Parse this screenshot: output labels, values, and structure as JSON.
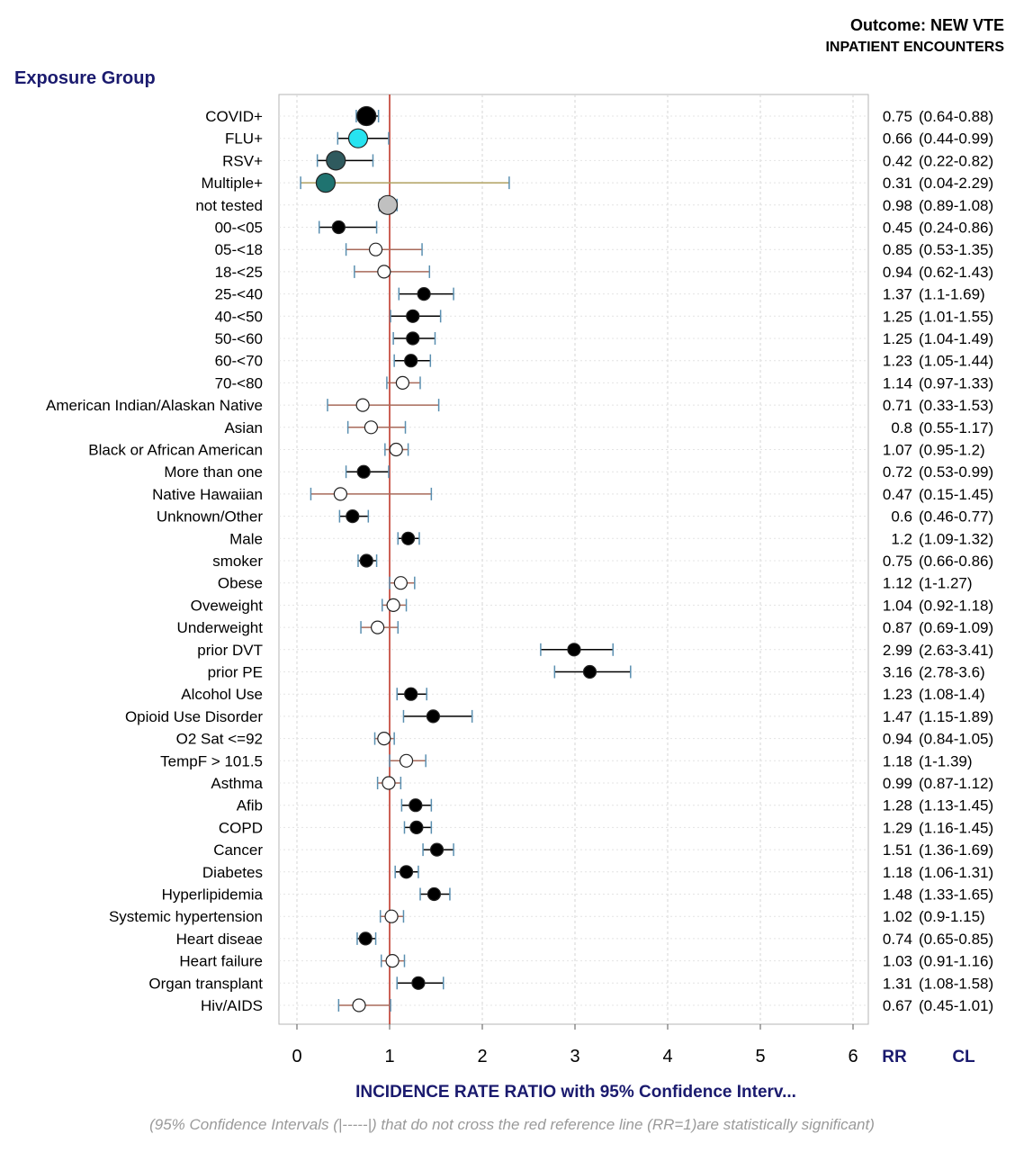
{
  "header": {
    "outcome": "Outcome: NEW VTE",
    "encounters": "INPATIENT ENCOUNTERS",
    "group_title": "Exposure Group"
  },
  "footnote": "(95% Confidence Intervals (|-----|) that do not cross the red reference line (RR=1)are statistically significant)",
  "chart_data": {
    "type": "scatter",
    "title": "",
    "xlabel": "INCIDENCE RATE RATIO with 95% Confidence Interv...",
    "ylabel": "Exposure Group",
    "xlim": [
      -0.2,
      6.3
    ],
    "xticks": [
      0,
      1,
      2,
      3,
      4,
      5,
      6
    ],
    "reference_line": 1,
    "grid": true,
    "colors": {
      "reference": "#c0392b",
      "significant": "#000000",
      "not_significant": "#ffffff",
      "flu": "#27e3f0",
      "rsv": "#2f5a5e",
      "multiple": "#1f7370",
      "not_tested": "#c0c0c0",
      "ci_significant": "#000000",
      "ci_not_significant": "#a86a5a",
      "ci_multiple": "#b0a060",
      "header_blue": "#1a1a6e"
    },
    "col_headers": {
      "rr": "RR",
      "cl": "CL"
    },
    "rows": [
      {
        "label": "COVID+",
        "rr": 0.75,
        "lo": 0.64,
        "hi": 0.88,
        "rr_text": "0.75",
        "ci_text": "(0.64-0.88)",
        "fill": "#000000",
        "size": "large"
      },
      {
        "label": "FLU+",
        "rr": 0.66,
        "lo": 0.44,
        "hi": 0.99,
        "rr_text": "0.66",
        "ci_text": "(0.44-0.99)",
        "fill": "#27e3f0",
        "size": "large"
      },
      {
        "label": "RSV+",
        "rr": 0.42,
        "lo": 0.22,
        "hi": 0.82,
        "rr_text": "0.42",
        "ci_text": "(0.22-0.82)",
        "fill": "#2f5a5e",
        "size": "large"
      },
      {
        "label": "Multiple+",
        "rr": 0.31,
        "lo": 0.04,
        "hi": 2.29,
        "rr_text": "0.31",
        "ci_text": "(0.04-2.29)",
        "fill": "#1f7370",
        "size": "large"
      },
      {
        "label": "not tested",
        "rr": 0.98,
        "lo": 0.89,
        "hi": 1.08,
        "rr_text": "0.98",
        "ci_text": "(0.89-1.08)",
        "fill": "#c0c0c0",
        "size": "large"
      },
      {
        "label": "00-<05",
        "rr": 0.45,
        "lo": 0.24,
        "hi": 0.86,
        "rr_text": "0.45",
        "ci_text": "(0.24-0.86)",
        "sig": true
      },
      {
        "label": "05-<18",
        "rr": 0.85,
        "lo": 0.53,
        "hi": 1.35,
        "rr_text": "0.85",
        "ci_text": "(0.53-1.35)",
        "sig": false
      },
      {
        "label": "18-<25",
        "rr": 0.94,
        "lo": 0.62,
        "hi": 1.43,
        "rr_text": "0.94",
        "ci_text": "(0.62-1.43)",
        "sig": false
      },
      {
        "label": "25-<40",
        "rr": 1.37,
        "lo": 1.1,
        "hi": 1.69,
        "rr_text": "1.37",
        "ci_text": "(1.1-1.69)",
        "sig": true
      },
      {
        "label": "40-<50",
        "rr": 1.25,
        "lo": 1.01,
        "hi": 1.55,
        "rr_text": "1.25",
        "ci_text": "(1.01-1.55)",
        "sig": true
      },
      {
        "label": "50-<60",
        "rr": 1.25,
        "lo": 1.04,
        "hi": 1.49,
        "rr_text": "1.25",
        "ci_text": "(1.04-1.49)",
        "sig": true
      },
      {
        "label": "60-<70",
        "rr": 1.23,
        "lo": 1.05,
        "hi": 1.44,
        "rr_text": "1.23",
        "ci_text": "(1.05-1.44)",
        "sig": true
      },
      {
        "label": "70-<80",
        "rr": 1.14,
        "lo": 0.97,
        "hi": 1.33,
        "rr_text": "1.14",
        "ci_text": "(0.97-1.33)",
        "sig": false
      },
      {
        "label": "American Indian/Alaskan Native",
        "rr": 0.71,
        "lo": 0.33,
        "hi": 1.53,
        "rr_text": "0.71",
        "ci_text": "(0.33-1.53)",
        "sig": false
      },
      {
        "label": "Asian",
        "rr": 0.8,
        "lo": 0.55,
        "hi": 1.17,
        "rr_text": "0.8",
        "ci_text": "(0.55-1.17)",
        "sig": false
      },
      {
        "label": "Black or African American",
        "rr": 1.07,
        "lo": 0.95,
        "hi": 1.2,
        "rr_text": "1.07",
        "ci_text": "(0.95-1.2)",
        "sig": false
      },
      {
        "label": "More than one",
        "rr": 0.72,
        "lo": 0.53,
        "hi": 0.99,
        "rr_text": "0.72",
        "ci_text": "(0.53-0.99)",
        "sig": true
      },
      {
        "label": "Native Hawaiian",
        "rr": 0.47,
        "lo": 0.15,
        "hi": 1.45,
        "rr_text": "0.47",
        "ci_text": "(0.15-1.45)",
        "sig": false
      },
      {
        "label": "Unknown/Other",
        "rr": 0.6,
        "lo": 0.46,
        "hi": 0.77,
        "rr_text": "0.6",
        "ci_text": "(0.46-0.77)",
        "sig": true
      },
      {
        "label": "Male",
        "rr": 1.2,
        "lo": 1.09,
        "hi": 1.32,
        "rr_text": "1.2",
        "ci_text": "(1.09-1.32)",
        "sig": true
      },
      {
        "label": "smoker",
        "rr": 0.75,
        "lo": 0.66,
        "hi": 0.86,
        "rr_text": "0.75",
        "ci_text": "(0.66-0.86)",
        "sig": true
      },
      {
        "label": "Obese",
        "rr": 1.12,
        "lo": 1.0,
        "hi": 1.27,
        "rr_text": "1.12",
        "ci_text": "(1-1.27)",
        "sig": false
      },
      {
        "label": "Oveweight",
        "rr": 1.04,
        "lo": 0.92,
        "hi": 1.18,
        "rr_text": "1.04",
        "ci_text": "(0.92-1.18)",
        "sig": false
      },
      {
        "label": "Underweight",
        "rr": 0.87,
        "lo": 0.69,
        "hi": 1.09,
        "rr_text": "0.87",
        "ci_text": "(0.69-1.09)",
        "sig": false
      },
      {
        "label": "prior DVT",
        "rr": 2.99,
        "lo": 2.63,
        "hi": 3.41,
        "rr_text": "2.99",
        "ci_text": "(2.63-3.41)",
        "sig": true
      },
      {
        "label": "prior PE",
        "rr": 3.16,
        "lo": 2.78,
        "hi": 3.6,
        "rr_text": "3.16",
        "ci_text": "(2.78-3.6)",
        "sig": true
      },
      {
        "label": "Alcohol Use",
        "rr": 1.23,
        "lo": 1.08,
        "hi": 1.4,
        "rr_text": "1.23",
        "ci_text": "(1.08-1.4)",
        "sig": true
      },
      {
        "label": "Opioid Use Disorder",
        "rr": 1.47,
        "lo": 1.15,
        "hi": 1.89,
        "rr_text": "1.47",
        "ci_text": "(1.15-1.89)",
        "sig": true
      },
      {
        "label": "O2 Sat <=92",
        "rr": 0.94,
        "lo": 0.84,
        "hi": 1.05,
        "rr_text": "0.94",
        "ci_text": "(0.84-1.05)",
        "sig": false
      },
      {
        "label": "TempF > 101.5",
        "rr": 1.18,
        "lo": 1.0,
        "hi": 1.39,
        "rr_text": "1.18",
        "ci_text": "(1-1.39)",
        "sig": false
      },
      {
        "label": "Asthma",
        "rr": 0.99,
        "lo": 0.87,
        "hi": 1.12,
        "rr_text": "0.99",
        "ci_text": "(0.87-1.12)",
        "sig": false
      },
      {
        "label": "Afib",
        "rr": 1.28,
        "lo": 1.13,
        "hi": 1.45,
        "rr_text": "1.28",
        "ci_text": "(1.13-1.45)",
        "sig": true
      },
      {
        "label": "COPD",
        "rr": 1.29,
        "lo": 1.16,
        "hi": 1.45,
        "rr_text": "1.29",
        "ci_text": "(1.16-1.45)",
        "sig": true
      },
      {
        "label": "Cancer",
        "rr": 1.51,
        "lo": 1.36,
        "hi": 1.69,
        "rr_text": "1.51",
        "ci_text": "(1.36-1.69)",
        "sig": true
      },
      {
        "label": "Diabetes",
        "rr": 1.18,
        "lo": 1.06,
        "hi": 1.31,
        "rr_text": "1.18",
        "ci_text": "(1.06-1.31)",
        "sig": true
      },
      {
        "label": "Hyperlipidemia",
        "rr": 1.48,
        "lo": 1.33,
        "hi": 1.65,
        "rr_text": "1.48",
        "ci_text": "(1.33-1.65)",
        "sig": true
      },
      {
        "label": "Systemic hypertension",
        "rr": 1.02,
        "lo": 0.9,
        "hi": 1.15,
        "rr_text": "1.02",
        "ci_text": "(0.9-1.15)",
        "sig": false
      },
      {
        "label": "Heart diseae",
        "rr": 0.74,
        "lo": 0.65,
        "hi": 0.85,
        "rr_text": "0.74",
        "ci_text": "(0.65-0.85)",
        "sig": true
      },
      {
        "label": "Heart failure",
        "rr": 1.03,
        "lo": 0.91,
        "hi": 1.16,
        "rr_text": "1.03",
        "ci_text": "(0.91-1.16)",
        "sig": false
      },
      {
        "label": "Organ transplant",
        "rr": 1.31,
        "lo": 1.08,
        "hi": 1.58,
        "rr_text": "1.31",
        "ci_text": "(1.08-1.58)",
        "sig": true
      },
      {
        "label": "Hiv/AIDS",
        "rr": 0.67,
        "lo": 0.45,
        "hi": 1.01,
        "rr_text": "0.67",
        "ci_text": "(0.45-1.01)",
        "sig": false
      }
    ]
  }
}
